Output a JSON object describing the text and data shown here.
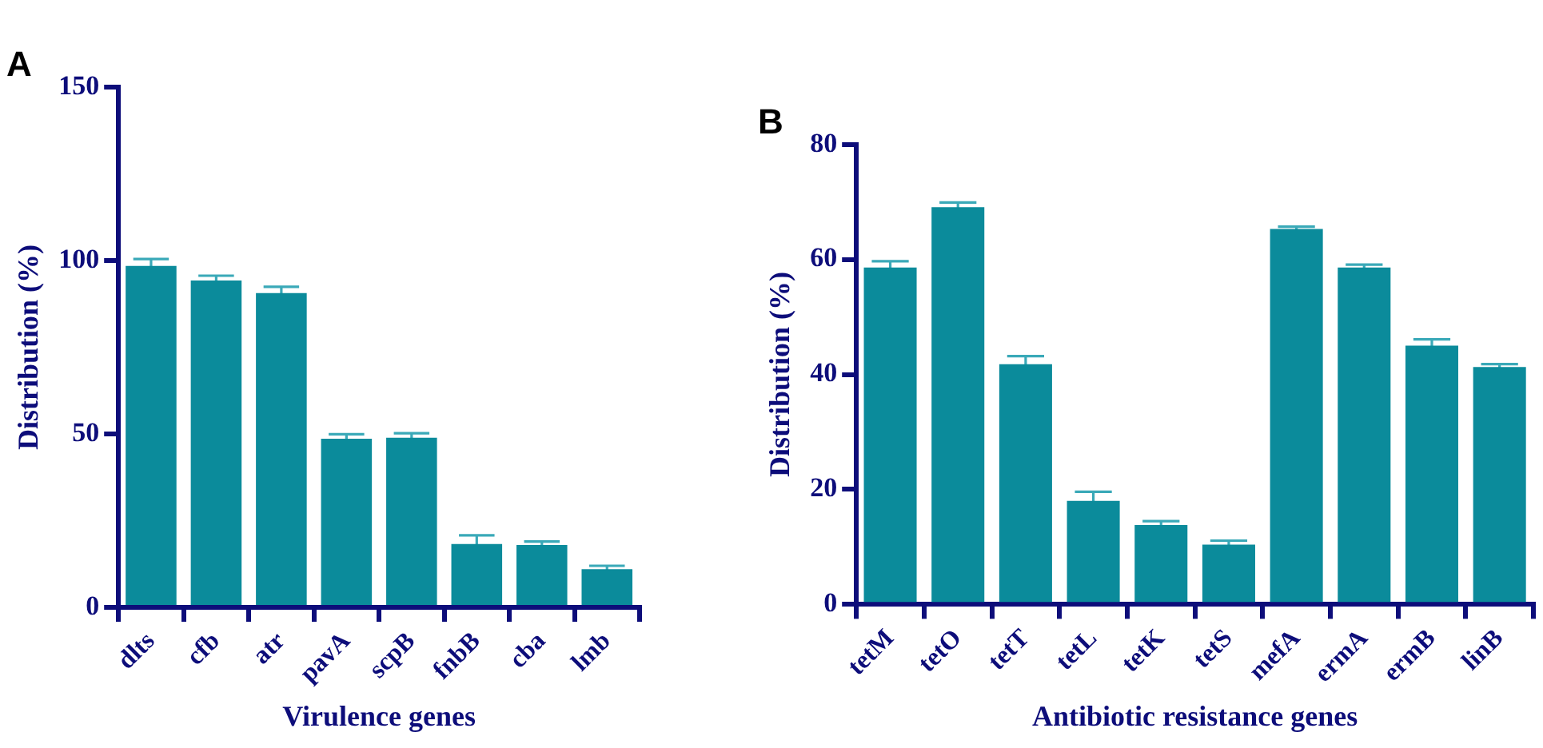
{
  "chart_data": [
    {
      "type": "bar",
      "title": "A",
      "xlabel": "Virulence genes",
      "ylabel": "Distribution (%)",
      "categories": [
        "dlts",
        "cfb",
        "atr",
        "pavA",
        "scpB",
        "fnbB",
        "cba",
        "lmb"
      ],
      "values": [
        98.4,
        94.2,
        90.6,
        48.6,
        48.9,
        18.3,
        18.0,
        11
      ],
      "errors": [
        2,
        1.4,
        1.8,
        1.3,
        1.3,
        2.5,
        1,
        1
      ],
      "color": "#0b8b9b",
      "ylim": [
        0,
        150
      ],
      "yticks": [
        0,
        50,
        100,
        150
      ],
      "grid": false,
      "legend": false
    },
    {
      "type": "bar",
      "title": "B",
      "xlabel": "Antibiotic resistance genes",
      "ylabel": "Distribution (%)",
      "categories": [
        "tetM",
        "tetO",
        "tetT",
        "tetL",
        "tetK",
        "tetS",
        "mefA",
        "ermA",
        "ermB",
        "linB"
      ],
      "values": [
        58.6,
        69.1,
        41.8,
        18.0,
        13.8,
        10.4,
        65.3,
        58.6,
        45.0,
        41.3
      ],
      "errors": [
        1.1,
        0.8,
        1.4,
        1.6,
        0.7,
        0.7,
        0.4,
        0.5,
        1.1,
        0.5
      ],
      "color": "#0b8b9b",
      "ylim": [
        0,
        80
      ],
      "yticks": [
        0,
        20,
        40,
        60,
        80
      ],
      "grid": false,
      "legend": false
    }
  ]
}
